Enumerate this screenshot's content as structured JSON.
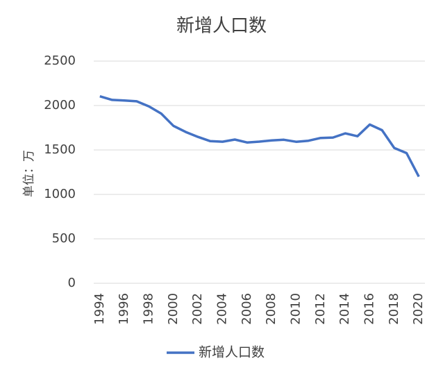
{
  "chart_data": {
    "type": "line",
    "title": "新增人口数",
    "y_label": "单位：万",
    "categories": [
      "1994",
      null,
      "1996",
      null,
      "1998",
      null,
      "2000",
      null,
      "2002",
      null,
      "2004",
      null,
      "2006",
      null,
      "2008",
      null,
      "2010",
      null,
      "2012",
      null,
      "2014",
      null,
      "2016",
      null,
      "2018",
      null,
      "2020"
    ],
    "series": [
      {
        "name": "新增人口数",
        "color": "#4472c4",
        "values": [
          2104,
          2063,
          2057,
          2048,
          1991,
          1909,
          1771,
          1702,
          1647,
          1599,
          1593,
          1617,
          1584,
          1594,
          1608,
          1615,
          1592,
          1604,
          1635,
          1640,
          1687,
          1655,
          1786,
          1723,
          1523,
          1465,
          1200
        ]
      }
    ],
    "ylim": [
      0,
      2500
    ],
    "yticks": [
      0,
      500,
      1000,
      1500,
      2000,
      2500
    ],
    "grid": true,
    "legend": "bottom"
  }
}
